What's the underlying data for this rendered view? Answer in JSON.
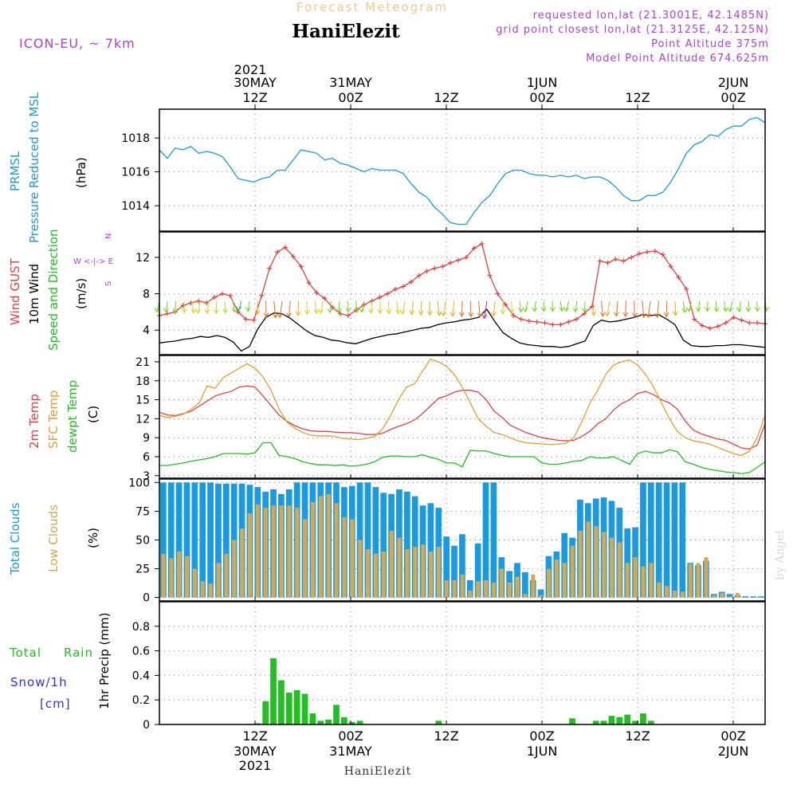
{
  "header": {
    "product_title": "Forecast Meteogram",
    "location": "HaniElezit",
    "model": "ICON-EU, ~ 7km",
    "requested": "requested lon,lat (21.3001E, 42.1485N)",
    "closest": "grid point closest lon,lat (21.3125E, 42.125N)",
    "altitude": "Point Altitude 375m",
    "model_altitude": "Model Point Altitude 674.625m",
    "top_year": "2021",
    "footer_name": "HaniElezit",
    "watermark": "by Angel"
  },
  "time_axis": {
    "top_labels": [
      {
        "t": 12,
        "l1": "30MAY",
        "l2": "12Z"
      },
      {
        "t": 24,
        "l1": "31MAY",
        "l2": "00Z"
      },
      {
        "t": 36,
        "l1": "",
        "l2": "12Z"
      },
      {
        "t": 48,
        "l1": "1JUN",
        "l2": "00Z"
      },
      {
        "t": 60,
        "l1": "",
        "l2": "12Z"
      },
      {
        "t": 72,
        "l1": "2JUN",
        "l2": "00Z"
      }
    ],
    "bottom_labels": [
      {
        "t": 12,
        "l1": "12Z",
        "l2": "30MAY",
        "l3": "2021"
      },
      {
        "t": 24,
        "l1": "00Z",
        "l2": "31MAY",
        "l3": ""
      },
      {
        "t": 36,
        "l1": "12Z",
        "l2": "",
        "l3": ""
      },
      {
        "t": 48,
        "l1": "00Z",
        "l2": "1JUN",
        "l3": ""
      },
      {
        "t": 60,
        "l1": "12Z",
        "l2": "",
        "l3": ""
      },
      {
        "t": 72,
        "l1": "00Z",
        "l2": "2JUN",
        "l3": ""
      }
    ]
  },
  "panel_labels": {
    "pressure": {
      "l1": "PRMSL",
      "l2": "Pressure Reduced to MSL",
      "unit": "(hPa)"
    },
    "wind": {
      "l1": "Wind GUST",
      "l2": "10m Wind",
      "l3": "Speed and Direction",
      "unit": "(m/s)",
      "compass_n": "N",
      "compass_row": "W <-|-> E",
      "compass_s": "S"
    },
    "temp": {
      "l1": "2m Temp",
      "l2": "SFC Temp",
      "l3": "dewpt Temp",
      "unit": "(C)"
    },
    "cloud": {
      "l1": "Total Clouds",
      "l2": "Low Clouds",
      "unit": "(%)"
    },
    "precip": {
      "l1": "Total",
      "l1b": "Rain",
      "l2": "Snow/1h",
      "l3": "[cm]",
      "unit": "1hr Precip (mm)"
    }
  },
  "colors": {
    "pressure": "#1a9ae0",
    "gust": "#e84040",
    "wind": "#000000",
    "t2m": "#e84040",
    "tsfc": "#e0a030",
    "dewpt": "#20c020",
    "total_cloud": "#1a9ae0",
    "low_cloud": "#d8a850",
    "rain": "#20c020",
    "snow": "#3030e0",
    "purple": "#b040d8",
    "title_orange": "#f0c890"
  },
  "chart_data": [
    {
      "type": "line",
      "name": "pressure",
      "x_range": [
        0,
        76
      ],
      "ylim": [
        1012.5,
        1019.7
      ],
      "yticks": [
        1014,
        1016,
        1018
      ],
      "series": [
        {
          "name": "PRMSL",
          "values": [
            1017.3,
            1016.8,
            1017.4,
            1017.3,
            1017.5,
            1017.1,
            1017.2,
            1017.1,
            1016.9,
            1016.3,
            1015.6,
            1015.5,
            1015.4,
            1015.6,
            1015.7,
            1016.1,
            1016.1,
            1016.7,
            1017.3,
            1017.2,
            1017.1,
            1016.7,
            1016.8,
            1016.5,
            1016.4,
            1016.2,
            1016.0,
            1016.2,
            1016.1,
            1016.1,
            1016.1,
            1015.9,
            1015.3,
            1014.8,
            1014.5,
            1013.9,
            1013.5,
            1013.0,
            1012.9,
            1012.9,
            1013.6,
            1014.2,
            1014.6,
            1015.3,
            1015.9,
            1016.1,
            1016.1,
            1015.9,
            1015.8,
            1015.8,
            1015.7,
            1015.8,
            1015.7,
            1015.8,
            1015.6,
            1015.7,
            1015.7,
            1015.5,
            1015.1,
            1014.6,
            1014.3,
            1014.3,
            1014.6,
            1014.6,
            1014.8,
            1015.4,
            1016.2,
            1017.1,
            1017.6,
            1017.8,
            1018.2,
            1018.1,
            1018.5,
            1018.7,
            1018.7,
            1019.1,
            1019.2,
            1018.9
          ]
        }
      ]
    },
    {
      "type": "line",
      "name": "wind",
      "x_range": [
        0,
        76
      ],
      "ylim": [
        1.3,
        14.8
      ],
      "yticks": [
        4,
        8,
        12
      ],
      "series": [
        {
          "name": "Wind GUST",
          "values": [
            5.6,
            5.8,
            6.0,
            6.7,
            7.0,
            7.2,
            7.0,
            7.6,
            8.0,
            7.8,
            6.0,
            5.2,
            5.1,
            7.8,
            10.8,
            12.6,
            13.1,
            12.1,
            11.0,
            9.2,
            8.1,
            7.5,
            6.5,
            5.8,
            5.6,
            6.2,
            6.8,
            7.2,
            7.6,
            8.0,
            8.5,
            8.8,
            9.3,
            10.0,
            10.5,
            10.8,
            11.0,
            11.4,
            11.7,
            12.0,
            13.0,
            13.5,
            10.0,
            8.0,
            6.8,
            5.6,
            5.2,
            5.0,
            4.9,
            4.8,
            4.6,
            4.6,
            4.9,
            5.2,
            5.8,
            6.6,
            11.6,
            11.4,
            11.8,
            11.6,
            12.0,
            12.4,
            12.6,
            12.7,
            12.3,
            11.0,
            9.8,
            8.5,
            5.2,
            4.5,
            4.2,
            4.4,
            4.8,
            5.4,
            5.1,
            4.8,
            4.8,
            4.7
          ]
        },
        {
          "name": "10m Wind",
          "values": [
            2.6,
            2.7,
            2.8,
            3.0,
            3.1,
            3.3,
            3.2,
            3.4,
            3.2,
            2.7,
            1.7,
            2.2,
            4.1,
            5.4,
            5.9,
            5.8,
            5.3,
            4.6,
            3.9,
            3.4,
            3.2,
            2.9,
            2.8,
            2.6,
            2.5,
            2.8,
            3.1,
            3.3,
            3.5,
            3.6,
            3.8,
            4.0,
            4.2,
            4.3,
            4.6,
            4.8,
            4.9,
            5.1,
            5.2,
            5.4,
            6.3,
            4.9,
            3.7,
            3.1,
            2.6,
            2.4,
            2.3,
            2.2,
            2.2,
            2.1,
            2.2,
            2.5,
            2.8,
            4.5,
            5.1,
            4.9,
            5.0,
            5.2,
            5.4,
            5.7,
            5.6,
            5.7,
            5.2,
            4.6,
            2.9,
            2.3,
            2.2,
            2.2,
            2.3,
            2.3,
            2.4,
            2.4,
            2.3,
            2.2,
            2.1
          ]
        }
      ]
    },
    {
      "type": "line",
      "name": "temperature",
      "x_range": [
        0,
        76
      ],
      "ylim": [
        2.6,
        22.0
      ],
      "yticks": [
        3,
        6,
        9,
        12,
        15,
        18,
        21
      ],
      "series": [
        {
          "name": "2m Temp",
          "values": [
            13.0,
            12.6,
            12.5,
            12.8,
            13.2,
            14.0,
            14.8,
            15.6,
            16.0,
            16.3,
            17.0,
            17.2,
            17.0,
            15.6,
            14.1,
            12.6,
            11.6,
            10.9,
            10.4,
            10.1,
            10.0,
            10.0,
            9.9,
            9.8,
            9.8,
            9.7,
            9.5,
            9.5,
            9.7,
            10.3,
            10.8,
            11.2,
            11.8,
            12.8,
            14.0,
            15.2,
            15.6,
            16.2,
            16.5,
            16.5,
            16.2,
            15.0,
            13.2,
            12.2,
            11.0,
            10.4,
            9.8,
            9.4,
            9.0,
            8.8,
            8.6,
            8.5,
            8.6,
            9.2,
            10.0,
            11.2,
            12.0,
            13.4,
            14.4,
            15.0,
            16.0,
            16.3,
            15.8,
            15.0,
            14.5,
            13.5,
            11.6,
            10.2,
            9.6,
            9.2,
            8.8,
            8.6,
            8.0,
            7.4,
            7.2,
            7.8,
            11.2
          ]
        },
        {
          "name": "SFC Temp",
          "values": [
            12.5,
            12.2,
            12.4,
            12.7,
            13.5,
            14.5,
            17.2,
            16.8,
            18.5,
            19.2,
            20.0,
            20.7,
            20.0,
            18.6,
            16.5,
            13.6,
            11.5,
            10.5,
            9.8,
            9.4,
            9.3,
            9.3,
            9.2,
            8.9,
            8.8,
            8.7,
            8.9,
            9.2,
            10.4,
            12.5,
            15.0,
            17.0,
            17.5,
            19.5,
            21.4,
            21.0,
            20.3,
            19.0,
            17.0,
            14.5,
            12.0,
            10.8,
            9.8,
            9.5,
            9.0,
            8.5,
            8.2,
            8.1,
            8.0,
            7.9,
            8.0,
            8.1,
            9.0,
            11.5,
            14.4,
            16.5,
            19.0,
            20.5,
            21.0,
            21.3,
            20.5,
            19.0,
            17.0,
            14.5,
            12.0,
            10.0,
            9.0,
            8.5,
            8.3,
            8.0,
            7.5,
            7.0,
            6.5,
            6.2,
            6.8,
            9.0,
            12.5
          ]
        },
        {
          "name": "dewpt Temp",
          "values": [
            4.6,
            4.6,
            4.8,
            5.0,
            5.3,
            5.5,
            5.7,
            6.0,
            6.5,
            6.5,
            6.5,
            6.4,
            6.6,
            8.2,
            8.2,
            6.2,
            6.0,
            5.7,
            5.2,
            4.9,
            4.7,
            4.7,
            4.6,
            4.7,
            4.5,
            4.6,
            4.8,
            5.2,
            5.9,
            6.1,
            6.1,
            6.0,
            6.0,
            6.3,
            5.9,
            5.6,
            5.0,
            5.0,
            4.4,
            7.0,
            6.9,
            6.9,
            6.5,
            6.2,
            6.0,
            6.0,
            6.0,
            6.0,
            5.0,
            4.8,
            4.8,
            5.0,
            5.3,
            5.4,
            6.0,
            5.8,
            5.8,
            6.0,
            5.4,
            4.8,
            6.5,
            6.9,
            6.6,
            6.6,
            7.1,
            6.8,
            5.2,
            4.8,
            4.3,
            4.0,
            3.8,
            3.6,
            3.5,
            3.3,
            3.5,
            4.3,
            5.2
          ]
        }
      ]
    },
    {
      "type": "bar",
      "name": "clouds",
      "x_range": [
        0,
        76
      ],
      "ylim": [
        -3,
        103
      ],
      "yticks": [
        0,
        25,
        50,
        75,
        100
      ],
      "series": [
        {
          "name": "Total Clouds",
          "values": [
            100,
            100,
            100,
            100,
            100,
            100,
            100,
            99,
            99,
            99,
            99,
            98,
            96,
            92,
            94,
            90,
            94,
            100,
            100,
            100,
            100,
            100,
            100,
            96,
            97,
            100,
            100,
            96,
            91,
            90,
            94,
            92,
            88,
            80,
            82,
            78,
            53,
            45,
            55,
            15,
            47,
            100,
            100,
            35,
            23,
            30,
            22,
            15,
            7,
            36,
            40,
            56,
            52,
            85,
            82,
            86,
            87,
            84,
            78,
            60,
            61,
            100,
            100,
            100,
            100,
            100,
            100,
            30,
            28,
            32,
            3,
            5,
            3,
            2,
            1,
            1,
            1
          ]
        },
        {
          "name": "Low Clouds",
          "values": [
            38,
            34,
            40,
            36,
            25,
            14,
            12,
            30,
            38,
            50,
            60,
            73,
            81,
            78,
            80,
            80,
            80,
            78,
            68,
            83,
            88,
            90,
            82,
            70,
            68,
            50,
            42,
            38,
            40,
            58,
            52,
            42,
            44,
            46,
            40,
            44,
            15,
            15,
            20,
            6,
            14,
            15,
            13,
            25,
            13,
            18,
            3,
            20,
            2,
            25,
            33,
            30,
            45,
            58,
            66,
            62,
            57,
            52,
            48,
            30,
            35,
            27,
            30,
            13,
            10,
            6,
            5,
            29,
            30,
            35,
            2,
            4,
            1,
            4,
            0,
            0,
            0
          ]
        }
      ]
    },
    {
      "type": "bar",
      "name": "precipitation",
      "x_range": [
        0,
        76
      ],
      "ylim": [
        0,
        1.0
      ],
      "yticks": [
        0,
        0.2,
        0.4,
        0.6,
        0.8
      ],
      "series": [
        {
          "name": "Total Rain",
          "values": [
            0,
            0,
            0,
            0,
            0,
            0,
            0,
            0,
            0,
            0,
            0,
            0.005,
            0.01,
            0.19,
            0.54,
            0.36,
            0.26,
            0.28,
            0.25,
            0.09,
            0.03,
            0.04,
            0.16,
            0.06,
            0.02,
            0.03,
            0,
            0,
            0,
            0,
            0,
            0,
            0,
            0,
            0,
            0.03,
            0,
            0,
            0,
            0,
            0,
            0,
            0,
            0,
            0,
            0,
            0,
            0,
            0,
            0,
            0,
            0,
            0.05,
            0,
            0,
            0.03,
            0.03,
            0.07,
            0.06,
            0.08,
            0.03,
            0.09,
            0.03,
            0,
            0,
            0,
            0,
            0,
            0,
            0,
            0,
            0,
            0,
            0,
            0,
            0
          ]
        },
        {
          "name": "Snow/1h",
          "values": []
        }
      ]
    }
  ]
}
